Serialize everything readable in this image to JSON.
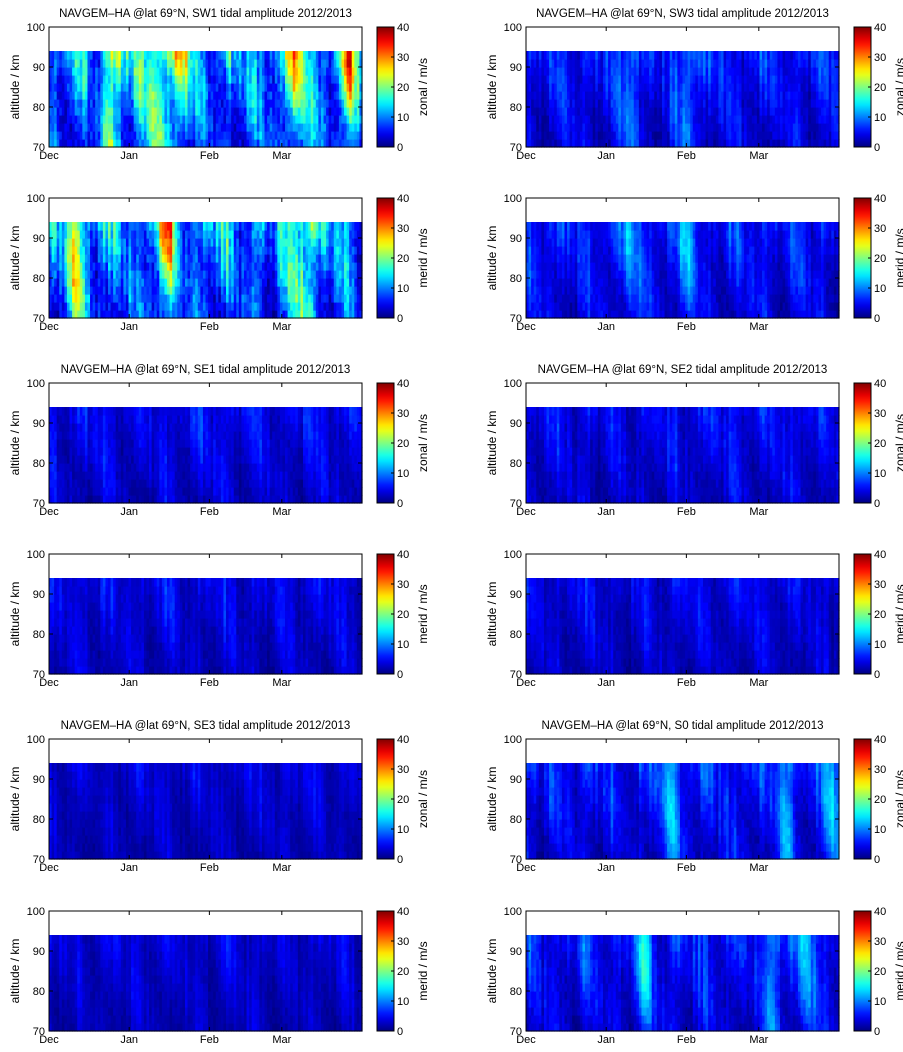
{
  "colormap_colors": [
    "#00008f",
    "#0000ff",
    "#00ffff",
    "#ffff00",
    "#ff0000",
    "#800000"
  ],
  "colormap_name": "jet",
  "colorbar_ticks": [
    "0",
    "10",
    "20",
    "30",
    "40"
  ],
  "y_ticks": [
    "70",
    "80",
    "90",
    "100"
  ],
  "x_ticks": [
    "Dec",
    "Jan",
    "Feb",
    "Mar"
  ],
  "y_label": "altitude / km",
  "chart_data": [
    {
      "type": "heatmap",
      "title": "NAVGEM–HA @lat 69°N, SW1 tidal amplitude 2012/2013",
      "component": "zonal",
      "colorbar_label": "zonal / m/s",
      "xlabel": "",
      "ylabel": "altitude / km",
      "x_ticks": [
        "Dec",
        "Jan",
        "Feb",
        "Mar"
      ],
      "ylim": [
        70,
        100
      ],
      "data_top_km": 94,
      "clim": [
        0,
        40
      ],
      "seed": 11,
      "base": 9,
      "amp": 13,
      "hot_days": [
        25,
        41,
        50,
        95,
        115
      ],
      "hot_amp": 16,
      "hot_width": 4
    },
    {
      "type": "heatmap",
      "title": "NAVGEM–HA @lat 69°N, SW3 tidal amplitude 2012/2013",
      "component": "zonal",
      "colorbar_label": "zonal / m/s",
      "xlabel": "",
      "ylabel": "altitude / km",
      "x_ticks": [
        "Dec",
        "Jan",
        "Feb",
        "Mar"
      ],
      "ylim": [
        70,
        100
      ],
      "data_top_km": 94,
      "clim": [
        0,
        40
      ],
      "seed": 23,
      "base": 5,
      "amp": 6,
      "hot_days": [
        40,
        62
      ],
      "hot_amp": 8,
      "hot_width": 3
    },
    {
      "type": "heatmap",
      "title": "",
      "component": "merid",
      "colorbar_label": "merid / m/s",
      "xlabel": "",
      "ylabel": "altitude / km",
      "x_ticks": [
        "Dec",
        "Jan",
        "Feb",
        "Mar"
      ],
      "ylim": [
        70,
        100
      ],
      "data_top_km": 94,
      "clim": [
        0,
        40
      ],
      "seed": 37,
      "base": 9,
      "amp": 13,
      "hot_days": [
        10,
        45,
        98
      ],
      "hot_amp": 15,
      "hot_width": 4
    },
    {
      "type": "heatmap",
      "title": "",
      "component": "merid",
      "colorbar_label": "merid / m/s",
      "xlabel": "",
      "ylabel": "altitude / km",
      "x_ticks": [
        "Dec",
        "Jan",
        "Feb",
        "Mar"
      ],
      "ylim": [
        70,
        100
      ],
      "data_top_km": 94,
      "clim": [
        0,
        40
      ],
      "seed": 41,
      "base": 5,
      "amp": 6,
      "hot_days": [
        40,
        62
      ],
      "hot_amp": 7,
      "hot_width": 3
    },
    {
      "type": "heatmap",
      "title": "NAVGEM–HA @lat 69°N, SE1 tidal amplitude 2012/2013",
      "component": "zonal",
      "colorbar_label": "zonal / m/s",
      "xlabel": "",
      "ylabel": "altitude / km",
      "x_ticks": [
        "Dec",
        "Jan",
        "Feb",
        "Mar"
      ],
      "ylim": [
        70,
        100
      ],
      "data_top_km": 94,
      "clim": [
        0,
        40
      ],
      "seed": 53,
      "base": 4,
      "amp": 5,
      "hot_days": [],
      "hot_amp": 0,
      "hot_width": 3
    },
    {
      "type": "heatmap",
      "title": "NAVGEM–HA @lat 69°N, SE2 tidal amplitude 2012/2013",
      "component": "zonal",
      "colorbar_label": "zonal / m/s",
      "xlabel": "",
      "ylabel": "altitude / km",
      "x_ticks": [
        "Dec",
        "Jan",
        "Feb",
        "Mar"
      ],
      "ylim": [
        70,
        100
      ],
      "data_top_km": 94,
      "clim": [
        0,
        40
      ],
      "seed": 67,
      "base": 4,
      "amp": 5,
      "hot_days": [],
      "hot_amp": 0,
      "hot_width": 3
    },
    {
      "type": "heatmap",
      "title": "",
      "component": "merid",
      "colorbar_label": "merid / m/s",
      "xlabel": "",
      "ylabel": "altitude / km",
      "x_ticks": [
        "Dec",
        "Jan",
        "Feb",
        "Mar"
      ],
      "ylim": [
        70,
        100
      ],
      "data_top_km": 94,
      "clim": [
        0,
        40
      ],
      "seed": 71,
      "base": 3.5,
      "amp": 4.5,
      "hot_days": [],
      "hot_amp": 0,
      "hot_width": 3
    },
    {
      "type": "heatmap",
      "title": "",
      "component": "merid",
      "colorbar_label": "merid / m/s",
      "xlabel": "",
      "ylabel": "altitude / km",
      "x_ticks": [
        "Dec",
        "Jan",
        "Feb",
        "Mar"
      ],
      "ylim": [
        70,
        100
      ],
      "data_top_km": 94,
      "clim": [
        0,
        40
      ],
      "seed": 83,
      "base": 3.5,
      "amp": 4.5,
      "hot_days": [],
      "hot_amp": 0,
      "hot_width": 3
    },
    {
      "type": "heatmap",
      "title": "NAVGEM–HA @lat 69°N, SE3 tidal amplitude 2012/2013",
      "component": "zonal",
      "colorbar_label": "zonal / m/s",
      "xlabel": "",
      "ylabel": "altitude / km",
      "x_ticks": [
        "Dec",
        "Jan",
        "Feb",
        "Mar"
      ],
      "ylim": [
        70,
        100
      ],
      "data_top_km": 94,
      "clim": [
        0,
        40
      ],
      "seed": 97,
      "base": 3,
      "amp": 3.5,
      "hot_days": [],
      "hot_amp": 0,
      "hot_width": 3
    },
    {
      "type": "heatmap",
      "title": "NAVGEM–HA @lat 69°N, S0 tidal amplitude 2012/2013",
      "component": "zonal",
      "colorbar_label": "zonal / m/s",
      "xlabel": "",
      "ylabel": "altitude / km",
      "x_ticks": [
        "Dec",
        "Jan",
        "Feb",
        "Mar"
      ],
      "ylim": [
        70,
        100
      ],
      "data_top_km": 94,
      "clim": [
        0,
        40
      ],
      "seed": 101,
      "base": 5,
      "amp": 6,
      "hot_days": [
        55,
        100,
        118
      ],
      "hot_amp": 9,
      "hot_width": 3
    },
    {
      "type": "heatmap",
      "title": "",
      "component": "merid",
      "colorbar_label": "merid / m/s",
      "xlabel": "",
      "ylabel": "altitude / km",
      "x_ticks": [
        "Dec",
        "Jan",
        "Feb",
        "Mar"
      ],
      "ylim": [
        70,
        100
      ],
      "data_top_km": 94,
      "clim": [
        0,
        40
      ],
      "seed": 113,
      "base": 3,
      "amp": 3.5,
      "hot_days": [],
      "hot_amp": 0,
      "hot_width": 3
    },
    {
      "type": "heatmap",
      "title": "",
      "component": "merid",
      "colorbar_label": "merid / m/s",
      "xlabel": "",
      "ylabel": "altitude / km",
      "x_ticks": [
        "Dec",
        "Jan",
        "Feb",
        "Mar"
      ],
      "ylim": [
        70,
        100
      ],
      "data_top_km": 94,
      "clim": [
        0,
        40
      ],
      "seed": 127,
      "base": 5,
      "amp": 6,
      "hot_days": [
        45,
        95,
        108
      ],
      "hot_amp": 8,
      "hot_width": 3
    }
  ]
}
